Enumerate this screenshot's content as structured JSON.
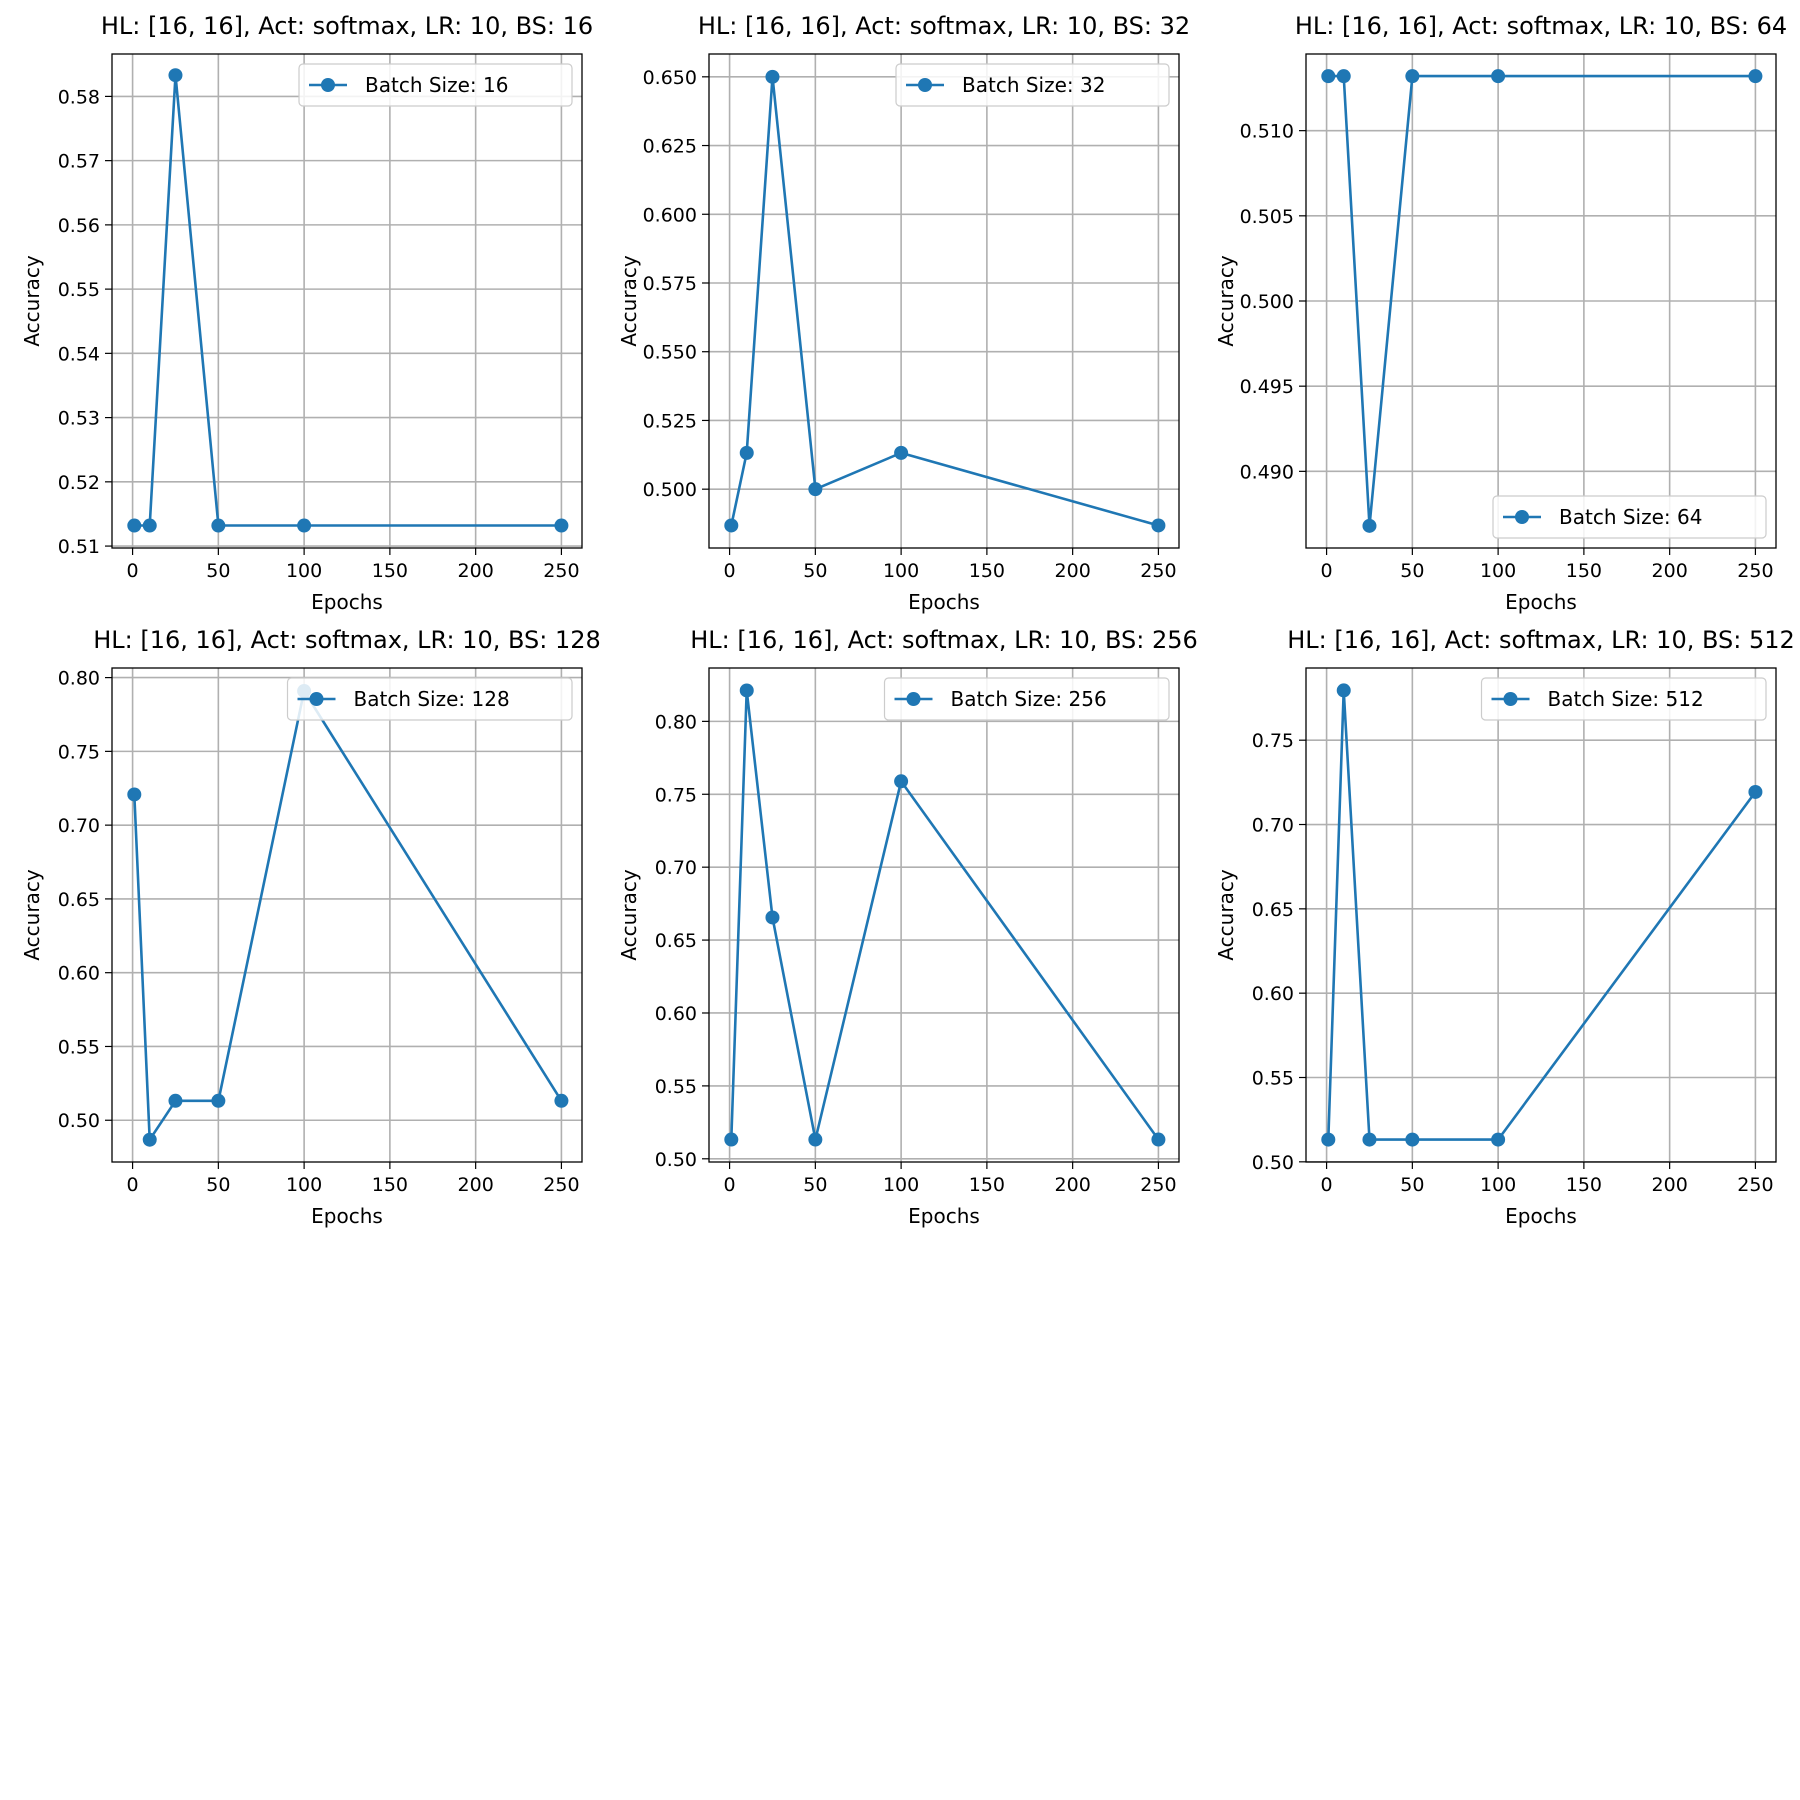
{
  "colors": {
    "series": "#1f77b4",
    "grid": "#b0b0b0",
    "axes": "#000000",
    "legend_border": "#cccccc"
  },
  "chart_data": [
    {
      "type": "line",
      "title": "HL: [16, 16], Act: softmax, LR: 10, BS: 16",
      "xlabel": "Epochs",
      "ylabel": "Accuracy",
      "xlim": [
        -12,
        262
      ],
      "ylim": [
        0.5097,
        0.5866
      ],
      "xticks": [
        0,
        50,
        100,
        150,
        200,
        250
      ],
      "yticks": [
        0.51,
        0.52,
        0.53,
        0.54,
        0.55,
        0.56,
        0.57,
        0.58
      ],
      "ytick_decimals": 2,
      "grid": true,
      "legend_position": "upper right",
      "series": [
        {
          "name": "Batch Size: 16",
          "x": [
            1,
            10,
            25,
            50,
            100,
            250
          ],
          "y": [
            0.5132,
            0.5132,
            0.5833,
            0.5132,
            0.5132,
            0.5132
          ]
        }
      ]
    },
    {
      "type": "line",
      "title": "HL: [16, 16], Act: softmax, LR: 10, BS: 32",
      "xlabel": "Epochs",
      "ylabel": "Accuracy",
      "xlim": [
        -12,
        262
      ],
      "ylim": [
        0.4786,
        0.6583
      ],
      "xticks": [
        0,
        50,
        100,
        150,
        200,
        250
      ],
      "yticks": [
        0.5,
        0.525,
        0.55,
        0.575,
        0.6,
        0.625,
        0.65
      ],
      "ytick_decimals": 3,
      "grid": true,
      "legend_position": "upper right",
      "series": [
        {
          "name": "Batch Size: 32",
          "x": [
            1,
            10,
            25,
            50,
            100,
            250
          ],
          "y": [
            0.4868,
            0.5132,
            0.65,
            0.5,
            0.5132,
            0.4868
          ]
        }
      ]
    },
    {
      "type": "line",
      "title": "HL: [16, 16], Act: softmax, LR: 10, BS: 64",
      "xlabel": "Epochs",
      "ylabel": "Accuracy",
      "xlim": [
        -12,
        262
      ],
      "ylim": [
        0.4855,
        0.5145
      ],
      "xticks": [
        0,
        50,
        100,
        150,
        200,
        250
      ],
      "yticks": [
        0.49,
        0.495,
        0.5,
        0.505,
        0.51
      ],
      "ytick_decimals": 3,
      "grid": true,
      "legend_position": "lower right",
      "series": [
        {
          "name": "Batch Size: 64",
          "x": [
            1,
            10,
            25,
            50,
            100,
            250
          ],
          "y": [
            0.5132,
            0.5132,
            0.4868,
            0.5132,
            0.5132,
            0.5132
          ]
        }
      ]
    },
    {
      "type": "line",
      "title": "HL: [16, 16], Act: softmax, LR: 10, BS: 128",
      "xlabel": "Epochs",
      "ylabel": "Accuracy",
      "xlim": [
        -12,
        262
      ],
      "ylim": [
        0.4717,
        0.8065
      ],
      "xticks": [
        0,
        50,
        100,
        150,
        200,
        250
      ],
      "yticks": [
        0.5,
        0.55,
        0.6,
        0.65,
        0.7,
        0.75,
        0.8
      ],
      "ytick_decimals": 2,
      "grid": true,
      "legend_position": "upper right",
      "series": [
        {
          "name": "Batch Size: 128",
          "x": [
            1,
            10,
            25,
            50,
            100,
            250
          ],
          "y": [
            0.7208,
            0.4868,
            0.5132,
            0.5132,
            0.7909,
            0.5132
          ]
        }
      ]
    },
    {
      "type": "line",
      "title": "HL: [16, 16], Act: softmax, LR: 10, BS: 256",
      "xlabel": "Epochs",
      "ylabel": "Accuracy",
      "xlim": [
        -12,
        262
      ],
      "ylim": [
        0.4978,
        0.8366
      ],
      "xticks": [
        0,
        50,
        100,
        150,
        200,
        250
      ],
      "yticks": [
        0.5,
        0.55,
        0.6,
        0.65,
        0.7,
        0.75,
        0.8
      ],
      "ytick_decimals": 2,
      "grid": true,
      "legend_position": "upper right",
      "series": [
        {
          "name": "Batch Size: 256",
          "x": [
            1,
            10,
            25,
            50,
            100,
            250
          ],
          "y": [
            0.5132,
            0.8212,
            0.6655,
            0.5132,
            0.7589,
            0.5132
          ]
        }
      ]
    },
    {
      "type": "line",
      "title": "HL: [16, 16], Act: softmax, LR: 10, BS: 512",
      "xlabel": "Epochs",
      "ylabel": "Accuracy",
      "xlim": [
        -12,
        262
      ],
      "ylim": [
        0.4999,
        0.7928
      ],
      "xticks": [
        0,
        50,
        100,
        150,
        200,
        250
      ],
      "yticks": [
        0.5,
        0.55,
        0.6,
        0.65,
        0.7,
        0.75
      ],
      "ytick_decimals": 2,
      "grid": true,
      "legend_position": "upper right",
      "series": [
        {
          "name": "Batch Size: 512",
          "x": [
            1,
            10,
            25,
            50,
            100,
            250
          ],
          "y": [
            0.5132,
            0.7795,
            0.5132,
            0.5132,
            0.5132,
            0.7193
          ]
        }
      ]
    }
  ]
}
